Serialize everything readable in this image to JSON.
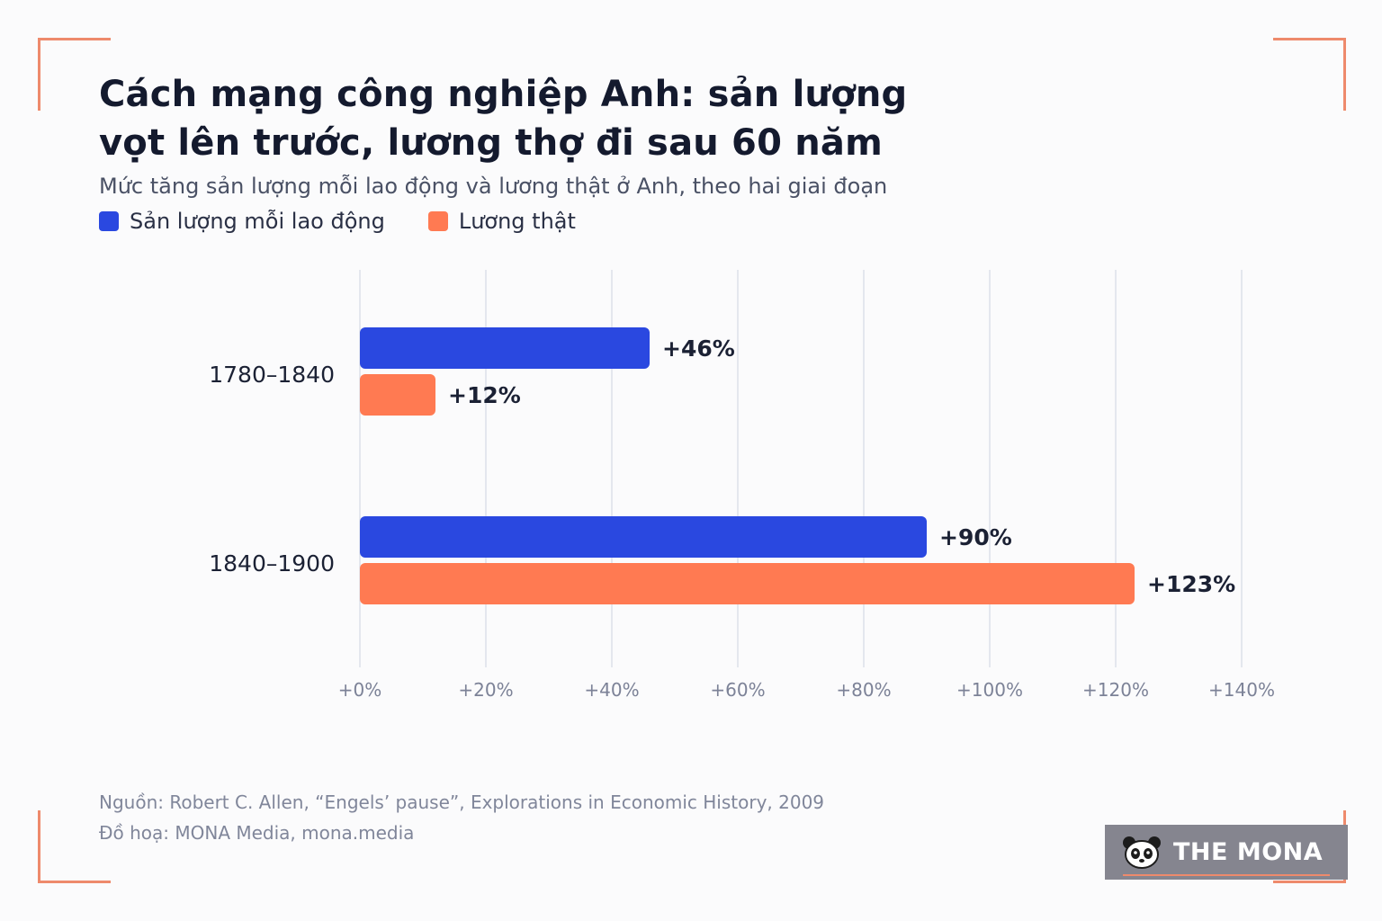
{
  "title": "Cách mạng công nghiệp Anh: sản lượng vọt lên trước, lương thợ đi sau 60 năm",
  "subtitle": "Mức tăng sản lượng mỗi lao động và lương thật ở Anh, theo hai giai đoạn",
  "colors": {
    "output": "#2a48e0",
    "wage": "#ff7a52",
    "corner_accent": "#ee8a6c",
    "grid": "#e4e7ee",
    "tick_text": "#7c8297",
    "label_text": "#1b2134"
  },
  "chart_data": {
    "type": "bar",
    "orientation": "horizontal",
    "categories": [
      "1780–1840",
      "1840–1900"
    ],
    "series": [
      {
        "name": "Sản lượng mỗi lao động",
        "color": "#2a48e0",
        "values": [
          46,
          90
        ],
        "labels": [
          "+46%",
          "+90%"
        ]
      },
      {
        "name": "Lương thật",
        "color": "#ff7a52",
        "values": [
          12,
          123
        ],
        "labels": [
          "+12%",
          "+123%"
        ]
      }
    ],
    "xlim": [
      0,
      140
    ],
    "xticks": [
      0,
      20,
      40,
      60,
      80,
      100,
      120,
      140
    ],
    "xtick_labels": [
      "+0%",
      "+20%",
      "+40%",
      "+60%",
      "+80%",
      "+100%",
      "+120%",
      "+140%"
    ],
    "grid": true,
    "legend_position": "top-left"
  },
  "footer": {
    "source": "Nguồn: Robert C. Allen, “Engels’ pause”, Explorations in Economic History, 2009",
    "credit": "Đồ hoạ: MONA Media, mona.media"
  },
  "brand": {
    "name": "THE MONA",
    "icon": "panda-icon"
  }
}
